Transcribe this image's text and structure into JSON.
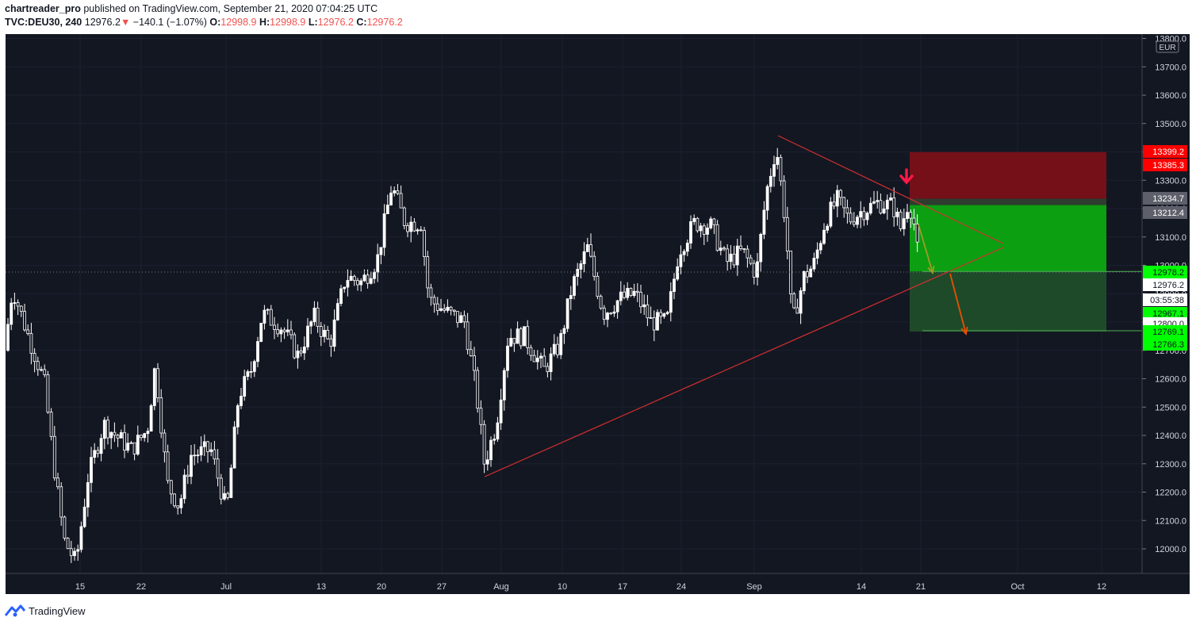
{
  "header": {
    "author": "chartreader_pro",
    "published": "published on TradingView.com, September 21, 2020 07:04:25 UTC",
    "symbol": "TVC:DEU30, 240",
    "last": "12976.2",
    "arrow": "▼",
    "change": "−140.1 (−1.07%)",
    "o_label": "O:",
    "o_value": "12998.9",
    "h_label": "H:",
    "h_value": "12998.9",
    "l_label": "L:",
    "l_value": "12976.2",
    "c_label": "C:",
    "c_value": "12976.2"
  },
  "footer": {
    "brand": "TradingView",
    "logo_icon": "tradingview-logo-icon"
  },
  "colors": {
    "background": "#131722",
    "candle": "#ffffff",
    "trendline": "#d32f2f",
    "stop_zone": "#7a1019",
    "target_zone": "#0c9f12",
    "target_zone_dark": "#1f4a2a",
    "label_red": "#ff0000",
    "label_green": "#00ff00",
    "label_gray": "#5d606b"
  },
  "chart_data": {
    "type": "candlestick",
    "currency": "EUR",
    "ylim": [
      11900,
      13820
    ],
    "y_ticks": [
      "12000.0",
      "12100.0",
      "12200.0",
      "12300.0",
      "12400.0",
      "12500.0",
      "12600.0",
      "12700.0",
      "12800.0",
      "12900.0",
      "13000.0",
      "13100.0",
      "13200.0",
      "13300.0",
      "13400.0",
      "13500.0",
      "13600.0",
      "13700.0",
      "13800.0"
    ],
    "x_ticks": [
      "15",
      "22",
      "Jul",
      "13",
      "20",
      "27",
      "Aug",
      "10",
      "17",
      "24",
      "Sep",
      "14",
      "21",
      "Oct",
      "12"
    ],
    "price_labels": [
      {
        "value": "13399.2",
        "color": "red"
      },
      {
        "value": "13385.3",
        "color": "red"
      },
      {
        "value": "13234.7",
        "color": "gray"
      },
      {
        "value": "13212.4",
        "color": "gray"
      },
      {
        "value": "12978.2",
        "color": "green"
      },
      {
        "value": "12976.2",
        "color": "white"
      },
      {
        "value": "03:55:38",
        "color": "white"
      },
      {
        "value": "12967.1",
        "color": "green"
      },
      {
        "value": "12800.0",
        "color": "white"
      },
      {
        "value": "12769.1",
        "color": "green"
      },
      {
        "value": "12766.3",
        "color": "green"
      }
    ],
    "position": {
      "side": "short",
      "entry": 13234.7,
      "stop": 13399.2,
      "target": 12766.3
    },
    "trendlines": [
      {
        "from": {
          "date": "Sep 3",
          "price": 13455
        },
        "to": {
          "date": "Sep 22",
          "price": 13120
        }
      },
      {
        "from": {
          "date": "Jul 30",
          "price": 12255
        },
        "to": {
          "date": "Sep 22",
          "price": 12990
        }
      }
    ],
    "projection_arrows": [
      {
        "from": 13212,
        "to": 12975
      },
      {
        "from": 12975,
        "to": 12766
      }
    ]
  }
}
